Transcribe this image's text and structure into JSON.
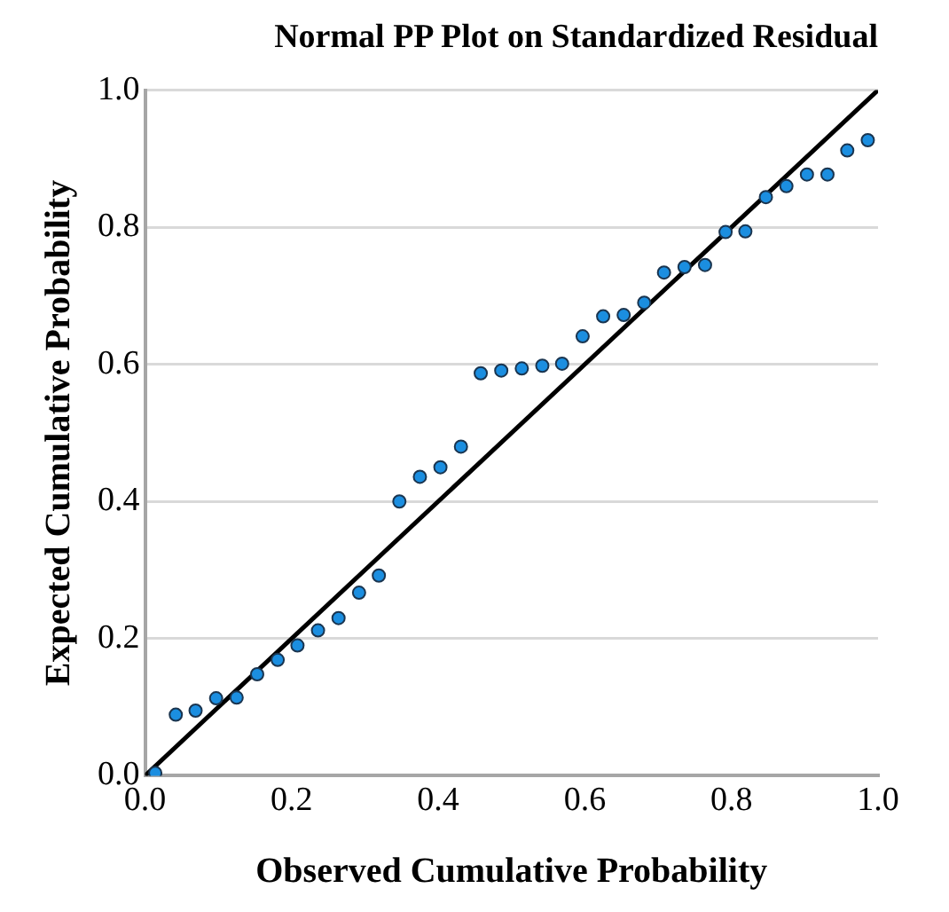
{
  "chart_data": {
    "type": "scatter",
    "title": "Normal PP Plot on Standardized Residual",
    "xlabel": "Observed Cumulative Probability",
    "ylabel": "Expected Cumulative Probability",
    "series": [
      {
        "color": "#1b8ee0",
        "marker": "circle",
        "x": [
          0.014,
          0.042,
          0.069,
          0.097,
          0.125,
          0.153,
          0.181,
          0.208,
          0.236,
          0.264,
          0.292,
          0.319,
          0.347,
          0.375,
          0.403,
          0.431,
          0.458,
          0.486,
          0.514,
          0.542,
          0.569,
          0.597,
          0.625,
          0.653,
          0.681,
          0.708,
          0.736,
          0.764,
          0.792,
          0.819,
          0.847,
          0.875,
          0.903,
          0.931,
          0.958,
          0.986
        ],
        "values": [
          0.004,
          0.089,
          0.095,
          0.113,
          0.114,
          0.148,
          0.169,
          0.19,
          0.212,
          0.23,
          0.267,
          0.292,
          0.4,
          0.436,
          0.45,
          0.48,
          0.587,
          0.591,
          0.594,
          0.598,
          0.601,
          0.641,
          0.67,
          0.672,
          0.69,
          0.734,
          0.742,
          0.745,
          0.793,
          0.794,
          0.844,
          0.86,
          0.877,
          0.877,
          0.912,
          0.927
        ]
      },
      {
        "type": "line",
        "color": "#000000",
        "marker": "none",
        "line_style": "solid",
        "x": [
          0,
          1
        ],
        "values": [
          0,
          1
        ]
      }
    ],
    "xlim": [
      0,
      1
    ],
    "ylim": [
      0,
      1
    ],
    "xticks": [
      {
        "value": 0,
        "label": "0.0"
      },
      {
        "value": 0.2,
        "label": "0.2"
      },
      {
        "value": 0.4,
        "label": "0.4"
      },
      {
        "value": 0.6,
        "label": "0.6"
      },
      {
        "value": 0.8,
        "label": "0.8"
      },
      {
        "value": 1,
        "label": "1.0"
      }
    ],
    "yticks": [
      {
        "value": 0,
        "label": "0.0"
      },
      {
        "value": 0.2,
        "label": "0.2"
      },
      {
        "value": 0.4,
        "label": "0.4"
      },
      {
        "value": 0.6,
        "label": "0.6"
      },
      {
        "value": 0.8,
        "label": "0.8"
      },
      {
        "value": 1,
        "label": "1.0"
      }
    ],
    "grid": "y",
    "legend": false
  }
}
